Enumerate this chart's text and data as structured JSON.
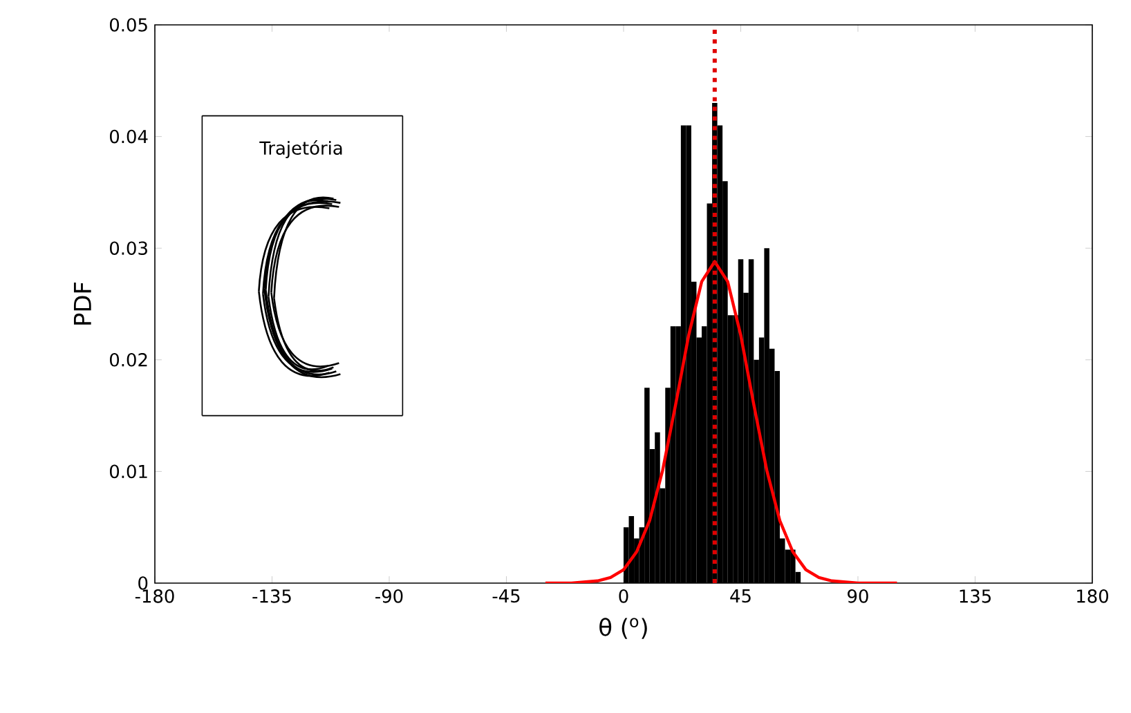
{
  "chart_data": {
    "type": "histogram",
    "xlabel": "θ ($^{o}$)",
    "ylabel": "PDF",
    "xlim": [
      -180,
      180
    ],
    "ylim": [
      0,
      0.05
    ],
    "xticks": [
      -180,
      -135,
      -90,
      -45,
      0,
      45,
      90,
      135,
      180
    ],
    "yticks": [
      0,
      0.01,
      0.02,
      0.03,
      0.04,
      0.05
    ],
    "grid": false,
    "series": [
      {
        "color": "#000000",
        "bins": [
          0,
          2,
          4,
          6,
          8,
          10,
          12,
          14,
          16,
          18,
          20,
          22,
          24,
          26,
          28,
          30,
          32,
          34,
          36,
          38,
          40,
          42,
          44,
          46,
          48,
          50,
          52,
          54,
          56,
          58,
          60,
          62,
          64,
          66,
          68
        ],
        "values": [
          0.005,
          0.006,
          0.004,
          0.005,
          0.0175,
          0.012,
          0.0135,
          0.0085,
          0.0175,
          0.023,
          0.023,
          0.041,
          0.041,
          0.027,
          0.022,
          0.023,
          0.034,
          0.043,
          0.041,
          0.036,
          0.024,
          0.024,
          0.029,
          0.026,
          0.029,
          0.02,
          0.022,
          0.03,
          0.021,
          0.019,
          0.004,
          0.003,
          0.003,
          0.001
        ]
      },
      {
        "type": "line",
        "color": "#ff0000",
        "x": [
          -30,
          -20,
          -10,
          -5,
          0,
          5,
          10,
          15,
          20,
          25,
          30,
          35,
          40,
          45,
          50,
          55,
          60,
          65,
          70,
          75,
          80,
          90,
          105
        ],
        "values": [
          0,
          0,
          0.0002,
          0.0005,
          0.0012,
          0.0028,
          0.0056,
          0.0101,
          0.016,
          0.0222,
          0.027,
          0.0288,
          0.027,
          0.0222,
          0.016,
          0.0101,
          0.0056,
          0.0028,
          0.0012,
          0.0005,
          0.0002,
          0,
          0
        ]
      }
    ],
    "ref_lines": [
      {
        "axis": "x",
        "value": 35,
        "color": "#e00000",
        "line_style": "dotted"
      }
    ],
    "annotations": [
      "Trajetória"
    ]
  }
}
